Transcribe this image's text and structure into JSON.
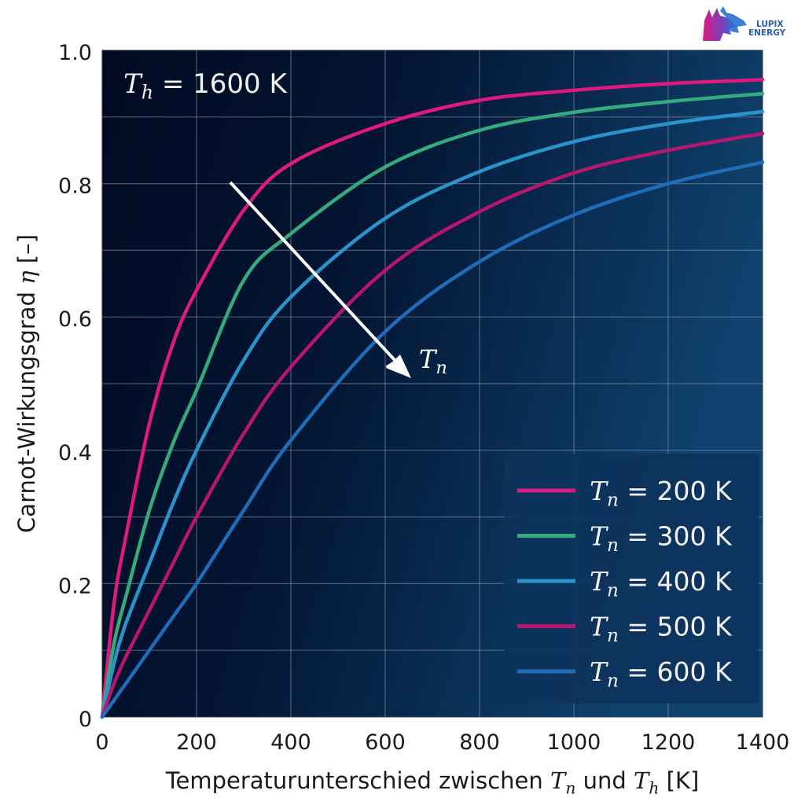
{
  "logo": {
    "line1": "LUPIX",
    "line2": "ENERGY"
  },
  "chart_data": {
    "type": "line",
    "title": "",
    "annotation": {
      "label_var": "T",
      "label_sub": "h",
      "label_eq": " = 1600 K"
    },
    "arrow_annotation": {
      "var": "T",
      "sub": "n",
      "from": [
        272,
        0.8
      ],
      "to": [
        655,
        0.51
      ]
    },
    "xlabel": {
      "text": "Temperaturunterschied zwischen ",
      "var1": "T",
      "sub1": "n",
      "mid": " und ",
      "var2": "T",
      "sub2": "h",
      "unit": " [K]"
    },
    "ylabel": {
      "text": "Carnot-Wirkungsgrad ",
      "var": "η",
      "unit": " [–]"
    },
    "xlim": [
      0,
      1400
    ],
    "ylim": [
      0,
      1.0
    ],
    "xticks": [
      0,
      200,
      400,
      600,
      800,
      1000,
      1200,
      1400
    ],
    "xtick_labels": [
      "0",
      "200",
      "400",
      "600",
      "800",
      "1000",
      "1200",
      "1400"
    ],
    "yticks": [
      0,
      0.2,
      0.4,
      0.6,
      0.8,
      1.0
    ],
    "ytick_labels": [
      "0",
      "0.2",
      "0.4",
      "0.6",
      "0.8",
      "1.0"
    ],
    "grid": {
      "x_step": 200,
      "y_step": 0.1
    },
    "legend_position": "lower right",
    "x": [
      0,
      25,
      50,
      100,
      150,
      200,
      300,
      400,
      600,
      800,
      1000,
      1200,
      1400
    ],
    "series": [
      {
        "name": "T_n = 200 K",
        "label_var": "T",
        "label_sub": "n",
        "label_eq": " = 200 K",
        "color": "#e0197f",
        "values": [
          0,
          0.17,
          0.27,
          0.44,
          0.56,
          0.64,
          0.76,
          0.83,
          0.89,
          0.925,
          0.94,
          0.95,
          0.956
        ]
      },
      {
        "name": "T_n = 300 K",
        "label_var": "T",
        "label_sub": "n",
        "label_eq": " = 300 K",
        "color": "#35aa7c",
        "values": [
          0,
          0.11,
          0.18,
          0.31,
          0.41,
          0.49,
          0.655,
          0.725,
          0.825,
          0.88,
          0.907,
          0.923,
          0.935
        ]
      },
      {
        "name": "T_n = 400 K",
        "label_var": "T",
        "label_sub": "n",
        "label_eq": " = 400 K",
        "color": "#2b93cc",
        "values": [
          0,
          0.08,
          0.14,
          0.23,
          0.32,
          0.4,
          0.535,
          0.63,
          0.748,
          0.818,
          0.863,
          0.89,
          0.908
        ]
      },
      {
        "name": "T_n = 500 K",
        "label_var": "T",
        "label_sub": "n",
        "label_eq": " = 500 K",
        "color": "#b5166e",
        "values": [
          0,
          0.05,
          0.09,
          0.16,
          0.23,
          0.3,
          0.425,
          0.525,
          0.67,
          0.758,
          0.816,
          0.85,
          0.875
        ]
      },
      {
        "name": "T_n = 600 K",
        "label_var": "T",
        "label_sub": "n",
        "label_eq": " = 600 K",
        "color": "#1f6cb8",
        "values": [
          0,
          0.025,
          0.05,
          0.1,
          0.15,
          0.2,
          0.31,
          0.415,
          0.578,
          0.683,
          0.753,
          0.8,
          0.832
        ]
      }
    ]
  },
  "colors": {
    "plot_bg_left": "#020a22",
    "plot_bg_right": "#0f426f",
    "grid": "#8a96aa",
    "annotation_text": "#f2f2f2",
    "legend_bg": "#0d335c"
  }
}
